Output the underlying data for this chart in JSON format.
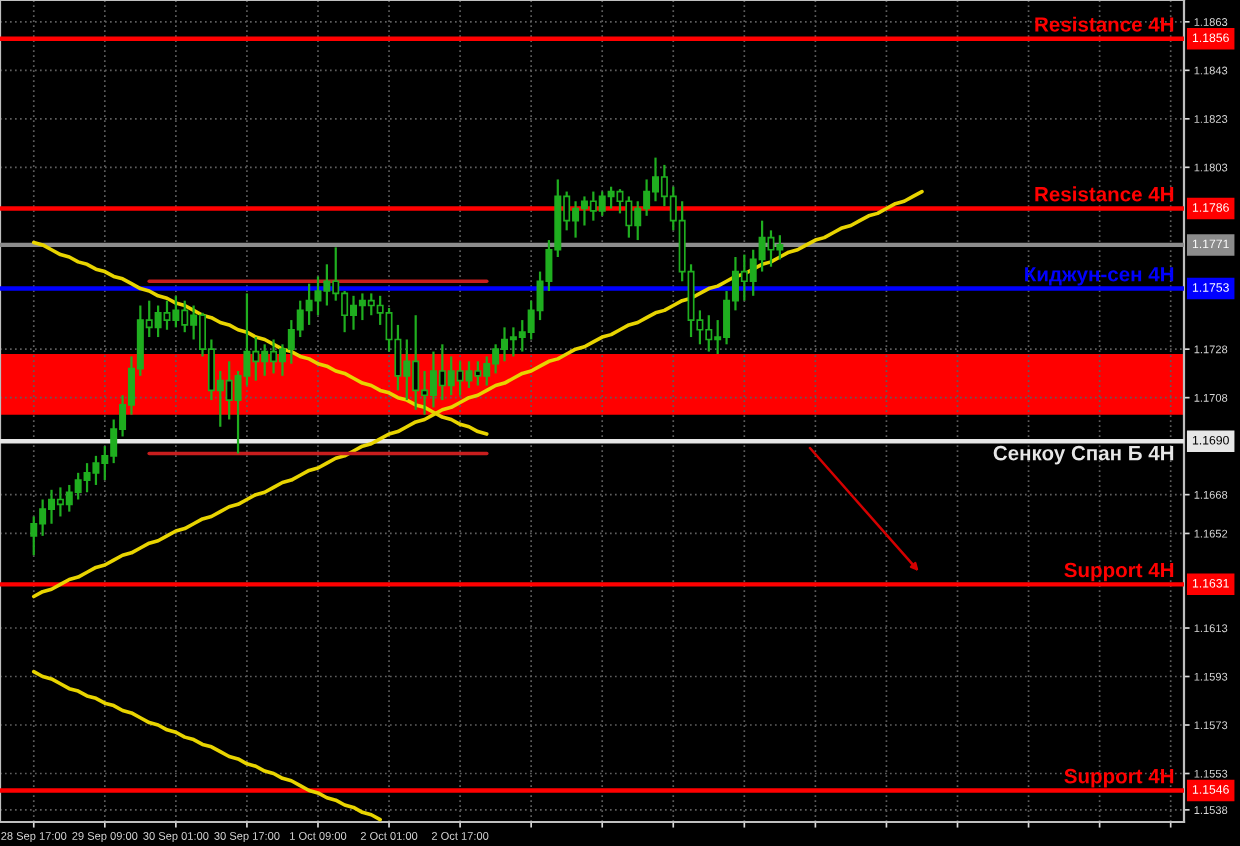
{
  "chart_data": {
    "type": "candlestick",
    "categories": [
      "28 Sep 17:00",
      null,
      null,
      null,
      null,
      null,
      null,
      null,
      "29 Sep 09:00",
      null,
      null,
      null,
      null,
      null,
      null,
      null,
      "30 Sep 01:00",
      null,
      null,
      null,
      null,
      null,
      null,
      null,
      "30 Sep 17:00",
      null,
      null,
      null,
      null,
      null,
      null,
      null,
      "1 Oct 09:00",
      null,
      null,
      null,
      null,
      null,
      null,
      null,
      "2 Oct 01:00",
      null,
      null,
      null,
      null,
      null,
      null,
      null,
      "2 Oct 17:00",
      null,
      null,
      null,
      null,
      null,
      null,
      null,
      null,
      null,
      null,
      null,
      null,
      null,
      null,
      null,
      null,
      null,
      null,
      null,
      null,
      null,
      null,
      null,
      null,
      null,
      null,
      null,
      null,
      null,
      null,
      null,
      null,
      null,
      null,
      null,
      null,
      null,
      null,
      null,
      null,
      null,
      null,
      null,
      null,
      null,
      null,
      null,
      null,
      null,
      null,
      null,
      null,
      null,
      null,
      null,
      null,
      null,
      null,
      null,
      null,
      null,
      null,
      null,
      null,
      null,
      null,
      null,
      null,
      null,
      null,
      null,
      null,
      null,
      null,
      null,
      null,
      null,
      null,
      null,
      null,
      null
    ],
    "series": [
      {
        "color": "#1fae1f",
        "ohlc": [
          [
            1.1651,
            1.1659,
            1.1643,
            1.1656
          ],
          [
            1.1656,
            1.1666,
            1.1651,
            1.1662
          ],
          [
            1.1662,
            1.167,
            1.1656,
            1.1666
          ],
          [
            1.1666,
            1.1671,
            1.1659,
            1.1664
          ],
          [
            1.1664,
            1.1672,
            1.1661,
            1.1669
          ],
          [
            1.1669,
            1.1677,
            1.1666,
            1.1674
          ],
          [
            1.1674,
            1.1681,
            1.1669,
            1.1677
          ],
          [
            1.1677,
            1.1684,
            1.1672,
            1.1681
          ],
          [
            1.1681,
            1.1688,
            1.1674,
            1.1684
          ],
          [
            1.1684,
            1.1699,
            1.1681,
            1.1695
          ],
          [
            1.1695,
            1.1709,
            1.1692,
            1.1705
          ],
          [
            1.1705,
            1.1725,
            1.1701,
            1.172
          ],
          [
            1.172,
            1.1746,
            1.1717,
            1.174
          ],
          [
            1.174,
            1.1748,
            1.1733,
            1.1737
          ],
          [
            1.1737,
            1.1746,
            1.1733,
            1.1743
          ],
          [
            1.1743,
            1.1748,
            1.1736,
            1.174
          ],
          [
            1.174,
            1.175,
            1.1737,
            1.1744
          ],
          [
            1.1744,
            1.1748,
            1.1735,
            1.1738
          ],
          [
            1.1738,
            1.1746,
            1.1732,
            1.1742
          ],
          [
            1.1742,
            1.1743,
            1.1725,
            1.1728
          ],
          [
            1.1728,
            1.1732,
            1.1707,
            1.1711
          ],
          [
            1.1711,
            1.1719,
            1.1696,
            1.1715
          ],
          [
            1.1715,
            1.1723,
            1.1699,
            1.1707
          ],
          [
            1.1707,
            1.1719,
            1.1685,
            1.1717
          ],
          [
            1.1717,
            1.1751,
            1.1713,
            1.1727
          ],
          [
            1.1727,
            1.1733,
            1.1715,
            1.1723
          ],
          [
            1.1723,
            1.173,
            1.1717,
            1.1727
          ],
          [
            1.1727,
            1.1732,
            1.1718,
            1.1723
          ],
          [
            1.1723,
            1.173,
            1.1717,
            1.1728
          ],
          [
            1.1728,
            1.174,
            1.1722,
            1.1736
          ],
          [
            1.1736,
            1.1748,
            1.1733,
            1.1744
          ],
          [
            1.1744,
            1.1755,
            1.1738,
            1.1748
          ],
          [
            1.1748,
            1.1758,
            1.1742,
            1.1752
          ],
          [
            1.1752,
            1.1763,
            1.1746,
            1.1756
          ],
          [
            1.1756,
            1.177,
            1.1748,
            1.1751
          ],
          [
            1.1751,
            1.1752,
            1.1735,
            1.1742
          ],
          [
            1.1742,
            1.175,
            1.1736,
            1.1746
          ],
          [
            1.1746,
            1.1751,
            1.174,
            1.1748
          ],
          [
            1.1748,
            1.1751,
            1.1742,
            1.1746
          ],
          [
            1.1746,
            1.175,
            1.1738,
            1.1743
          ],
          [
            1.1743,
            1.1745,
            1.1727,
            1.1732
          ],
          [
            1.1732,
            1.1738,
            1.1711,
            1.1717
          ],
          [
            1.1717,
            1.1732,
            1.1707,
            1.1723
          ],
          [
            1.1723,
            1.1742,
            1.1703,
            1.1711
          ],
          [
            1.1711,
            1.1719,
            1.1701,
            1.1709
          ],
          [
            1.1709,
            1.1727,
            1.1704,
            1.1719
          ],
          [
            1.1719,
            1.173,
            1.1707,
            1.1713
          ],
          [
            1.1713,
            1.1725,
            1.1709,
            1.1719
          ],
          [
            1.1719,
            1.1723,
            1.1709,
            1.1715
          ],
          [
            1.1715,
            1.1723,
            1.1712,
            1.1719
          ],
          [
            1.1719,
            1.1723,
            1.1713,
            1.1717
          ],
          [
            1.1717,
            1.1725,
            1.1713,
            1.1722
          ],
          [
            1.1722,
            1.173,
            1.1718,
            1.1728
          ],
          [
            1.1728,
            1.1737,
            1.1723,
            1.1732
          ],
          [
            1.1732,
            1.1737,
            1.1725,
            1.1733
          ],
          [
            1.1733,
            1.174,
            1.1727,
            1.1735
          ],
          [
            1.1735,
            1.1748,
            1.1732,
            1.1744
          ],
          [
            1.1744,
            1.176,
            1.174,
            1.1756
          ],
          [
            1.1756,
            1.1773,
            1.1752,
            1.1769
          ],
          [
            1.1769,
            1.1798,
            1.1766,
            1.1791
          ],
          [
            1.1791,
            1.1793,
            1.1777,
            1.1781
          ],
          [
            1.1781,
            1.1789,
            1.1774,
            1.1786
          ],
          [
            1.1786,
            1.1791,
            1.1779,
            1.1789
          ],
          [
            1.1789,
            1.1793,
            1.1781,
            1.1785
          ],
          [
            1.1785,
            1.1793,
            1.1783,
            1.1791
          ],
          [
            1.1791,
            1.1795,
            1.1786,
            1.1793
          ],
          [
            1.1793,
            1.1794,
            1.1784,
            1.1789
          ],
          [
            1.1789,
            1.1791,
            1.1774,
            1.1779
          ],
          [
            1.1779,
            1.1789,
            1.1773,
            1.1786
          ],
          [
            1.1786,
            1.1798,
            1.1783,
            1.1793
          ],
          [
            1.1793,
            1.1807,
            1.1789,
            1.1799
          ],
          [
            1.1799,
            1.1804,
            1.1787,
            1.1791
          ],
          [
            1.1791,
            1.1795,
            1.1777,
            1.1781
          ],
          [
            1.1781,
            1.1789,
            1.1756,
            1.176
          ],
          [
            1.176,
            1.1763,
            1.1733,
            1.174
          ],
          [
            1.174,
            1.1744,
            1.173,
            1.1736
          ],
          [
            1.1736,
            1.1742,
            1.1727,
            1.1732
          ],
          [
            1.1732,
            1.174,
            1.1726,
            1.1733
          ],
          [
            1.1733,
            1.1752,
            1.173,
            1.1748
          ],
          [
            1.1748,
            1.1766,
            1.1744,
            1.176
          ],
          [
            1.176,
            1.1767,
            1.1748,
            1.1756
          ],
          [
            1.1756,
            1.1769,
            1.175,
            1.1765
          ],
          [
            1.1765,
            1.1781,
            1.176,
            1.1774
          ],
          [
            1.1774,
            1.1777,
            1.1762,
            1.1769
          ],
          [
            1.1769,
            1.1775,
            1.1765,
            1.1771
          ],
          null,
          null,
          null,
          null,
          null,
          null,
          null,
          null,
          null,
          null,
          null,
          null,
          null,
          null,
          null,
          null,
          null,
          null,
          null,
          null,
          null,
          null,
          null,
          null,
          null,
          null,
          null,
          null,
          null,
          null,
          null,
          null,
          null,
          null,
          null,
          null,
          null,
          null,
          null,
          null,
          null,
          null,
          null,
          null,
          null
        ]
      },
      {
        "type": "line",
        "color": "#e8d400",
        "values": [
          1.1772,
          1.1771,
          1.1769,
          1.1767,
          1.1766,
          1.1764,
          1.1763,
          1.1761,
          1.176,
          1.1758,
          1.1757,
          1.1755,
          1.1753,
          1.1752,
          1.175,
          1.1749,
          1.1747,
          1.1746,
          1.1744,
          1.1742,
          1.1741,
          1.1739,
          1.1738,
          1.1736,
          1.1735,
          1.1733,
          1.1732,
          1.173,
          1.1728,
          1.1727,
          1.1725,
          1.1724,
          1.1722,
          1.1721,
          1.1719,
          1.1718,
          1.1716,
          1.1714,
          1.1713,
          1.1711,
          1.171,
          1.1708,
          1.1707,
          1.1705,
          1.1704,
          1.1702,
          1.17,
          1.1699,
          1.1697,
          1.1696,
          1.1694,
          1.1693,
          null,
          null,
          null,
          null,
          null,
          null,
          null,
          null,
          null,
          null,
          null,
          null,
          null,
          null,
          null,
          null,
          null,
          null,
          null,
          null,
          null,
          null,
          null,
          null,
          null,
          null,
          null,
          null,
          null,
          null,
          null,
          null,
          null,
          null,
          null,
          null,
          null,
          null,
          null,
          null,
          null,
          null,
          null,
          null,
          null,
          null,
          null,
          null,
          null,
          null,
          null,
          null,
          null,
          null,
          null,
          null,
          null,
          null,
          null,
          null,
          null,
          null,
          null,
          null,
          null,
          null,
          null,
          null,
          null,
          null,
          null,
          null,
          null,
          null,
          null,
          null,
          null,
          null
        ]
      },
      {
        "type": "line",
        "color": "#e8d400",
        "values": [
          1.1626,
          1.1628,
          1.1629,
          1.1631,
          1.1633,
          1.1634,
          1.1636,
          1.1638,
          1.1639,
          1.1641,
          1.1643,
          1.1644,
          1.1646,
          1.1648,
          1.1649,
          1.1651,
          1.1653,
          1.1654,
          1.1656,
          1.1658,
          1.1659,
          1.1661,
          1.1663,
          1.1664,
          1.1666,
          1.1668,
          1.1669,
          1.1671,
          1.1673,
          1.1674,
          1.1676,
          1.1678,
          1.1679,
          1.1681,
          1.1683,
          1.1684,
          1.1686,
          1.1688,
          1.1689,
          1.1691,
          1.1693,
          1.1694,
          1.1696,
          1.1698,
          1.1699,
          1.1701,
          1.1703,
          1.1704,
          1.1706,
          1.1708,
          1.1709,
          1.1711,
          1.1713,
          1.1714,
          1.1716,
          1.1718,
          1.1719,
          1.1721,
          1.1723,
          1.1724,
          1.1726,
          1.1728,
          1.1729,
          1.1731,
          1.1733,
          1.1734,
          1.1736,
          1.1738,
          1.1739,
          1.1741,
          1.1743,
          1.1744,
          1.1746,
          1.1748,
          1.1749,
          1.1751,
          1.1753,
          1.1754,
          1.1756,
          1.1758,
          1.1759,
          1.1761,
          1.1763,
          1.1764,
          1.1766,
          1.1768,
          1.1769,
          1.1771,
          1.1773,
          1.1774,
          1.1776,
          1.1778,
          1.1779,
          1.1781,
          1.1783,
          1.1784,
          1.1786,
          1.1788,
          1.1789,
          1.1791,
          1.1793,
          null,
          null,
          null,
          null,
          null,
          null,
          null,
          null,
          null,
          null,
          null,
          null,
          null,
          null,
          null,
          null,
          null,
          null,
          null,
          null,
          null,
          null,
          null,
          null,
          null,
          null,
          null,
          null,
          null
        ]
      },
      {
        "type": "line",
        "color": "#e8d400",
        "values": [
          1.1595,
          1.1593,
          1.1592,
          1.159,
          1.1588,
          1.1587,
          1.1585,
          1.1584,
          1.1582,
          1.1581,
          1.1579,
          1.1578,
          1.1576,
          1.1574,
          1.1573,
          1.1571,
          1.157,
          1.1568,
          1.1567,
          1.1565,
          1.1564,
          1.1562,
          1.156,
          1.1559,
          1.1557,
          1.1556,
          1.1554,
          1.1553,
          1.1551,
          1.155,
          1.1548,
          1.1546,
          1.1545,
          1.1543,
          1.1542,
          1.154,
          1.1539,
          1.1537,
          1.1536,
          1.1534,
          null,
          null,
          null,
          null,
          null,
          null,
          null,
          null,
          null,
          null,
          null,
          null,
          null,
          null,
          null,
          null,
          null,
          null,
          null,
          null,
          null,
          null,
          null,
          null,
          null,
          null,
          null,
          null,
          null,
          null,
          null,
          null,
          null,
          null,
          null,
          null,
          null,
          null,
          null,
          null,
          null,
          null,
          null,
          null,
          null,
          null,
          null,
          null,
          null,
          null,
          null,
          null,
          null,
          null,
          null,
          null,
          null,
          null,
          null,
          null,
          null,
          null,
          null,
          null,
          null,
          null,
          null,
          null,
          null,
          null,
          null,
          null,
          null,
          null,
          null,
          null,
          null,
          null,
          null,
          null,
          null,
          null,
          null,
          null,
          null,
          null,
          null,
          null,
          null,
          null
        ]
      },
      {
        "type": "line",
        "color": "#c81e1e",
        "values": [
          null,
          null,
          null,
          null,
          null,
          null,
          null,
          null,
          null,
          null,
          null,
          null,
          null,
          1.1756,
          1.1756,
          1.1756,
          1.1756,
          1.1756,
          1.1756,
          1.1756,
          1.1756,
          1.1756,
          1.1756,
          1.1756,
          1.1756,
          1.1756,
          1.1756,
          1.1756,
          1.1756,
          1.1756,
          1.1756,
          1.1756,
          1.1756,
          1.1756,
          1.1756,
          1.1756,
          1.1756,
          1.1756,
          1.1756,
          1.1756,
          1.1756,
          1.1756,
          1.1756,
          1.1756,
          1.1756,
          1.1756,
          1.1756,
          1.1756,
          1.1756,
          1.1756,
          1.1756,
          1.1756,
          null,
          null,
          null,
          null,
          null,
          null,
          null,
          null,
          null,
          null,
          null,
          null,
          null,
          null,
          null,
          null,
          null,
          null,
          null,
          null,
          null,
          null,
          null,
          null,
          null,
          null,
          null,
          null,
          null,
          null,
          null,
          null,
          null,
          null,
          null,
          null,
          null,
          null,
          null,
          null,
          null,
          null,
          null,
          null,
          null,
          null,
          null,
          null,
          null,
          null,
          null,
          null,
          null,
          null,
          null,
          null,
          null,
          null,
          null,
          null,
          null,
          null,
          null,
          null,
          null,
          null,
          null,
          null,
          null,
          null,
          null,
          null,
          null,
          null,
          null,
          null,
          null,
          null
        ]
      },
      {
        "type": "line",
        "color": "#c81e1e",
        "values": [
          null,
          null,
          null,
          null,
          null,
          null,
          null,
          null,
          null,
          null,
          null,
          null,
          null,
          1.1685,
          1.1685,
          1.1685,
          1.1685,
          1.1685,
          1.1685,
          1.1685,
          1.1685,
          1.1685,
          1.1685,
          1.1685,
          1.1685,
          1.1685,
          1.1685,
          1.1685,
          1.1685,
          1.1685,
          1.1685,
          1.1685,
          1.1685,
          1.1685,
          1.1685,
          1.1685,
          1.1685,
          1.1685,
          1.1685,
          1.1685,
          1.1685,
          1.1685,
          1.1685,
          1.1685,
          1.1685,
          1.1685,
          1.1685,
          1.1685,
          1.1685,
          1.1685,
          1.1685,
          1.1685,
          null,
          null,
          null,
          null,
          null,
          null,
          null,
          null,
          null,
          null,
          null,
          null,
          null,
          null,
          null,
          null,
          null,
          null,
          null,
          null,
          null,
          null,
          null,
          null,
          null,
          null,
          null,
          null,
          null,
          null,
          null,
          null,
          null,
          null,
          null,
          null,
          null,
          null,
          null,
          null,
          null,
          null,
          null,
          null,
          null,
          null,
          null,
          null,
          null,
          null,
          null,
          null,
          null,
          null,
          null,
          null,
          null,
          null,
          null,
          null,
          null,
          null,
          null,
          null,
          null,
          null,
          null,
          null,
          null,
          null,
          null,
          null,
          null,
          null,
          null,
          null,
          null,
          null
        ]
      }
    ],
    "ylim": [
      1.1533,
      1.1872
    ],
    "yticks": [
      1.1863,
      1.1843,
      1.1823,
      1.1803,
      1.1728,
      1.1708,
      1.1668,
      1.1652,
      1.1613,
      1.1593,
      1.1573,
      1.1553,
      1.1538
    ],
    "ref_lines": [
      {
        "axis": "y",
        "value": 1.1856,
        "label": "Resistance 4H",
        "color": "#ff0000"
      },
      {
        "axis": "y",
        "value": 1.1786,
        "label": "Resistance 4H",
        "color": "#ff0000"
      },
      {
        "axis": "y",
        "value": 1.1771,
        "color": "#8c8c8c"
      },
      {
        "axis": "y",
        "value": 1.1753,
        "label": "Киджун-сен 4H",
        "color": "#0000ff"
      },
      {
        "axis": "y",
        "value": 1.169,
        "label": "Сенкоу Спан Б 4H",
        "color": "#e6e6e6"
      },
      {
        "axis": "y",
        "value": 1.1631,
        "label": "Support 4H",
        "color": "#ff0000"
      },
      {
        "axis": "y",
        "value": 1.1546,
        "label": "Support 4H",
        "color": "#ff0000"
      }
    ],
    "annotations": [
      {
        "text": "1.1856",
        "y": 1.1856
      },
      {
        "text": "1.1786",
        "y": 1.1786
      },
      {
        "text": "1.1771",
        "y": 1.1771
      },
      {
        "text": "1.1753",
        "y": 1.1753
      },
      {
        "text": "1.1690",
        "y": 1.169
      },
      {
        "text": "1.1631",
        "y": 1.1631
      },
      {
        "text": "1.1546",
        "y": 1.1546
      }
    ],
    "bands": [
      {
        "axis": "y",
        "from": 1.1701,
        "to": 1.1726,
        "color": "#ff0000"
      }
    ],
    "grid": true
  }
}
